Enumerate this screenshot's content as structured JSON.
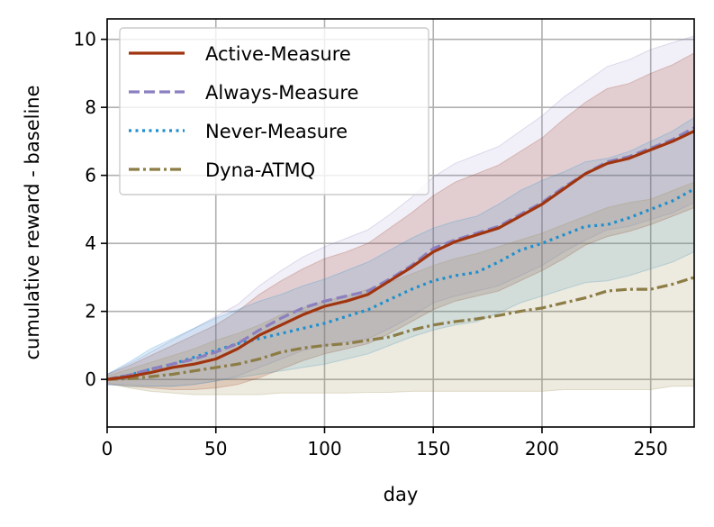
{
  "chart_data": {
    "type": "line",
    "title": "",
    "xlabel": "day",
    "ylabel": "cumulative reward - baseline",
    "xlim": [
      0,
      270
    ],
    "ylim": [
      -1.4,
      10.6
    ],
    "xticks": [
      0,
      50,
      100,
      150,
      200,
      250
    ],
    "yticks": [
      0,
      2,
      4,
      6,
      8,
      10
    ],
    "grid": true,
    "legend_position": "top-left",
    "series": [
      {
        "name": "Active-Measure",
        "style": "solid",
        "color": "#a0340f",
        "band_color": "#a0340f",
        "x": [
          0,
          10,
          20,
          30,
          40,
          50,
          60,
          70,
          80,
          90,
          100,
          110,
          120,
          130,
          140,
          150,
          160,
          170,
          180,
          190,
          200,
          210,
          220,
          230,
          240,
          250,
          260,
          270
        ],
        "values": [
          0,
          0.08,
          0.2,
          0.35,
          0.45,
          0.6,
          0.9,
          1.3,
          1.6,
          1.9,
          2.15,
          2.3,
          2.5,
          2.9,
          3.3,
          3.75,
          4.05,
          4.25,
          4.45,
          4.8,
          5.15,
          5.6,
          6.05,
          6.35,
          6.5,
          6.75,
          7.0,
          7.3
        ],
        "lower": [
          -0.15,
          -0.2,
          -0.25,
          -0.3,
          -0.3,
          -0.25,
          -0.15,
          0.05,
          0.3,
          0.55,
          0.75,
          0.9,
          1.05,
          1.35,
          1.7,
          2.05,
          2.3,
          2.45,
          2.6,
          2.9,
          3.2,
          3.55,
          3.95,
          4.2,
          4.35,
          4.55,
          4.8,
          5.05
        ],
        "upper": [
          0.15,
          0.4,
          0.7,
          1.0,
          1.3,
          1.6,
          2.0,
          2.5,
          2.9,
          3.25,
          3.55,
          3.75,
          4.0,
          4.45,
          4.9,
          5.4,
          5.8,
          6.05,
          6.3,
          6.7,
          7.1,
          7.65,
          8.15,
          8.55,
          8.7,
          9.0,
          9.25,
          9.6
        ]
      },
      {
        "name": "Always-Measure",
        "style": "dashed",
        "color": "#8b7fc0",
        "band_color": "#8b7fc0",
        "x": [
          0,
          10,
          20,
          30,
          40,
          50,
          60,
          70,
          80,
          90,
          100,
          110,
          120,
          130,
          140,
          150,
          160,
          170,
          180,
          190,
          200,
          210,
          220,
          230,
          240,
          250,
          260,
          270
        ],
        "values": [
          0,
          0.12,
          0.3,
          0.45,
          0.6,
          0.8,
          1.05,
          1.45,
          1.8,
          2.1,
          2.3,
          2.45,
          2.6,
          2.95,
          3.35,
          3.85,
          4.1,
          4.3,
          4.5,
          4.85,
          5.2,
          5.65,
          6.05,
          6.4,
          6.55,
          6.8,
          7.05,
          7.4
        ],
        "lower": [
          -0.15,
          -0.15,
          -0.2,
          -0.2,
          -0.15,
          -0.05,
          0.1,
          0.35,
          0.6,
          0.85,
          1.0,
          1.1,
          1.2,
          1.5,
          1.85,
          2.25,
          2.45,
          2.6,
          2.75,
          3.05,
          3.35,
          3.75,
          4.1,
          4.4,
          4.5,
          4.7,
          4.9,
          5.2
        ],
        "upper": [
          0.15,
          0.45,
          0.8,
          1.15,
          1.5,
          1.85,
          2.2,
          2.75,
          3.2,
          3.6,
          3.9,
          4.15,
          4.4,
          4.85,
          5.35,
          5.95,
          6.35,
          6.6,
          6.85,
          7.3,
          7.75,
          8.3,
          8.75,
          9.2,
          9.4,
          9.7,
          9.9,
          10.1
        ]
      },
      {
        "name": "Never-Measure",
        "style": "dotted",
        "color": "#1f8fcf",
        "band_color": "#1f8fcf",
        "x": [
          0,
          10,
          20,
          30,
          40,
          50,
          60,
          70,
          80,
          90,
          100,
          110,
          120,
          130,
          140,
          150,
          160,
          170,
          180,
          190,
          200,
          210,
          220,
          230,
          240,
          250,
          260,
          270
        ],
        "values": [
          0,
          0.12,
          0.3,
          0.45,
          0.65,
          0.85,
          1.05,
          1.2,
          1.35,
          1.5,
          1.65,
          1.85,
          2.05,
          2.35,
          2.65,
          2.9,
          3.05,
          3.15,
          3.45,
          3.8,
          4.0,
          4.25,
          4.5,
          4.55,
          4.75,
          5.0,
          5.25,
          5.6
        ],
        "lower": [
          -0.15,
          -0.2,
          -0.2,
          -0.2,
          -0.15,
          -0.05,
          0.05,
          0.15,
          0.25,
          0.35,
          0.45,
          0.6,
          0.75,
          1.0,
          1.25,
          1.45,
          1.6,
          1.7,
          1.95,
          2.25,
          2.45,
          2.65,
          2.85,
          2.9,
          3.05,
          3.25,
          3.45,
          3.75
        ],
        "upper": [
          0.15,
          0.5,
          0.9,
          1.2,
          1.5,
          1.8,
          2.05,
          2.3,
          2.5,
          2.75,
          2.95,
          3.2,
          3.45,
          3.8,
          4.15,
          4.45,
          4.65,
          4.8,
          5.15,
          5.55,
          5.85,
          6.1,
          6.4,
          6.5,
          6.7,
          7.0,
          7.3,
          7.7
        ]
      },
      {
        "name": "Dyna-ATMQ",
        "style": "dashdot",
        "color": "#8c7c45",
        "band_color": "#9a8a4f",
        "x": [
          0,
          10,
          20,
          30,
          40,
          50,
          60,
          70,
          80,
          90,
          100,
          110,
          120,
          130,
          140,
          150,
          160,
          170,
          180,
          190,
          200,
          210,
          220,
          230,
          240,
          250,
          260,
          270
        ],
        "values": [
          0,
          0.02,
          0.08,
          0.15,
          0.25,
          0.35,
          0.45,
          0.6,
          0.8,
          0.92,
          1.0,
          1.05,
          1.15,
          1.25,
          1.45,
          1.6,
          1.7,
          1.78,
          1.88,
          2.0,
          2.1,
          2.25,
          2.4,
          2.6,
          2.65,
          2.65,
          2.8,
          3.0
        ],
        "lower": [
          -0.1,
          -0.25,
          -0.35,
          -0.4,
          -0.45,
          -0.45,
          -0.45,
          -0.45,
          -0.4,
          -0.4,
          -0.4,
          -0.4,
          -0.38,
          -0.38,
          -0.35,
          -0.35,
          -0.35,
          -0.35,
          -0.35,
          -0.35,
          -0.35,
          -0.3,
          -0.3,
          -0.3,
          -0.3,
          -0.3,
          -0.2,
          -0.2
        ],
        "upper": [
          0.1,
          0.3,
          0.5,
          0.7,
          0.9,
          1.15,
          1.35,
          1.6,
          1.9,
          2.1,
          2.3,
          2.45,
          2.65,
          2.85,
          3.1,
          3.35,
          3.55,
          3.7,
          3.9,
          4.1,
          4.3,
          4.55,
          4.8,
          5.05,
          5.2,
          5.3,
          5.55,
          5.8
        ]
      }
    ]
  }
}
